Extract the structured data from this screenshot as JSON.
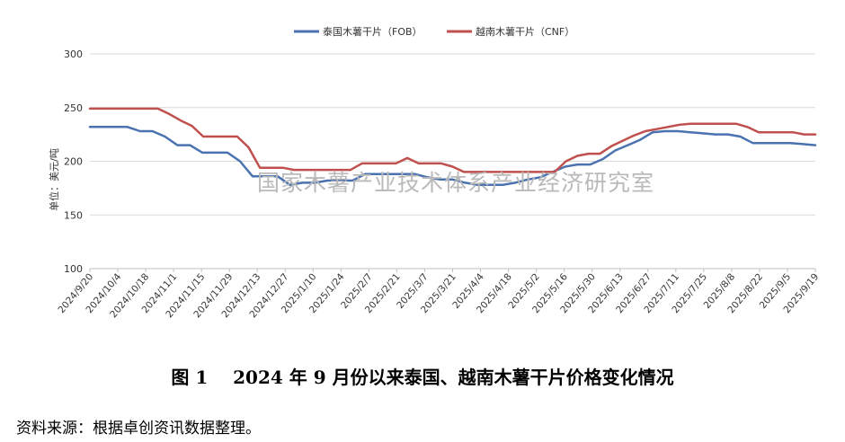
{
  "chart_data": {
    "type": "line",
    "ylabel": "单位：美元/吨",
    "ylim": [
      100,
      300
    ],
    "yticks": [
      100,
      150,
      200,
      250,
      300
    ],
    "grid": true,
    "legend_position": "top-center",
    "x_tick_labels": [
      "2024/9/20",
      "2024/10/4",
      "2024/10/18",
      "2024/11/1",
      "2024/11/15",
      "2024/11/29",
      "2024/12/13",
      "2024/12/27",
      "2025/1/10",
      "2025/1/24",
      "2025/2/7",
      "2025/2/21",
      "2025/3/7",
      "2025/3/21",
      "2025/4/4",
      "2025/4/18",
      "2025/5/2",
      "2025/5/16",
      "2025/5/30",
      "2025/6/13",
      "2025/6/27",
      "2025/7/11",
      "2025/7/25",
      "2025/8/8",
      "2025/8/22",
      "2025/9/5",
      "2025/9/19"
    ],
    "series": [
      {
        "name": "泰国木薯干片（FOB）",
        "color": "#4a72b0",
        "values": [
          232,
          232,
          232,
          232,
          228,
          228,
          223,
          215,
          215,
          208,
          208,
          208,
          200,
          186,
          186,
          186,
          178,
          180,
          180,
          182,
          182,
          182,
          188,
          188,
          188,
          188,
          188,
          185,
          183,
          183,
          180,
          178,
          178,
          178,
          180,
          183,
          185,
          190,
          195,
          197,
          197,
          202,
          210,
          215,
          220,
          227,
          228,
          228,
          227,
          226,
          225,
          225,
          223,
          217,
          217,
          217,
          217,
          216,
          215
        ]
      },
      {
        "name": "越南木薯干片（CNF）",
        "color": "#c0504d",
        "values": [
          249,
          249,
          249,
          249,
          249,
          249,
          249,
          244,
          238,
          233,
          223,
          223,
          223,
          223,
          213,
          194,
          194,
          194,
          192,
          192,
          192,
          192,
          192,
          192,
          198,
          198,
          198,
          198,
          203,
          198,
          198,
          198,
          195,
          190,
          190,
          190,
          190,
          190,
          190,
          190,
          190,
          190,
          200,
          205,
          207,
          207,
          214,
          219,
          224,
          228,
          230,
          232,
          234,
          235,
          235,
          235,
          235,
          235,
          232,
          227,
          227,
          227,
          227,
          225,
          225
        ]
      }
    ]
  },
  "watermark": "国家木薯产业技术体系产业经济研究室",
  "figure_caption": "图 1    2024 年 9 月份以来泰国、越南木薯干片价格变化情况",
  "source_note": "资料来源：根据卓创资讯数据整理。"
}
